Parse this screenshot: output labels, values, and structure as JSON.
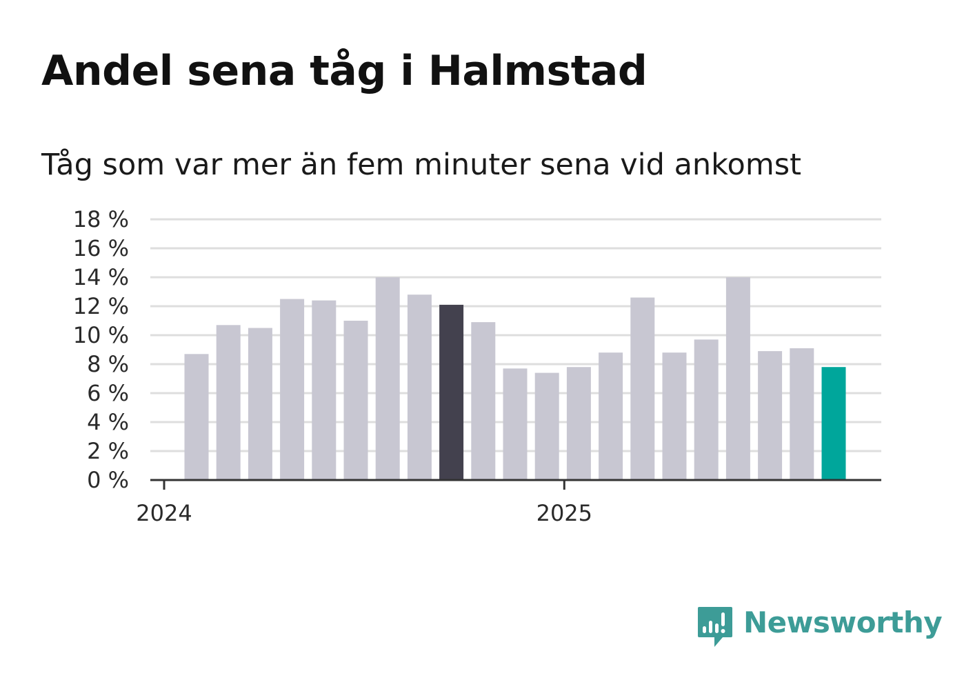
{
  "header": {
    "title": "Andel sena tåg i Halmstad",
    "subtitle": "Tåg som var mer än fem minuter sena vid ankomst"
  },
  "logo": {
    "text": "Newsworthy",
    "icon": "newsworthy-chart-bubble-icon",
    "color": "#3d9c97"
  },
  "colors": {
    "default_bar": "#c8c7d2",
    "highlight_bar": "#43414e",
    "latest_bar": "#00a69b",
    "grid": "#dedede",
    "axis": "#333333"
  },
  "chart_data": {
    "type": "bar",
    "title": "Andel sena tåg i Halmstad",
    "subtitle": "Tåg som var mer än fem minuter sena vid ankomst",
    "xlabel": "",
    "ylabel": "",
    "x_tick_labels": [
      "2024",
      "2025"
    ],
    "y_ticks": [
      0,
      2,
      4,
      6,
      8,
      10,
      12,
      14,
      16,
      18
    ],
    "y_tick_labels": [
      "0 %",
      "2 %",
      "4 %",
      "6 %",
      "8 %",
      "10 %",
      "12 %",
      "14 %",
      "16 %",
      "18 %"
    ],
    "ylim": [
      0,
      18
    ],
    "grid": true,
    "legend": "none",
    "categories": [
      "2024-01",
      "2024-02",
      "2024-03",
      "2024-04",
      "2024-05",
      "2024-06",
      "2024-07",
      "2024-08",
      "2024-09",
      "2024-10",
      "2024-11",
      "2024-12",
      "2025-01",
      "2025-02",
      "2025-03",
      "2025-04",
      "2025-05",
      "2025-06",
      "2025-07",
      "2025-08",
      "2025-09"
    ],
    "values": [
      8.7,
      10.7,
      10.5,
      12.5,
      12.4,
      11.0,
      14.0,
      12.8,
      12.1,
      10.9,
      7.7,
      7.4,
      7.8,
      8.8,
      12.6,
      8.8,
      9.7,
      14.0,
      8.9,
      9.1,
      7.8
    ],
    "highlight": {
      "2024-09": "highlight",
      "2025-09": "latest"
    }
  }
}
